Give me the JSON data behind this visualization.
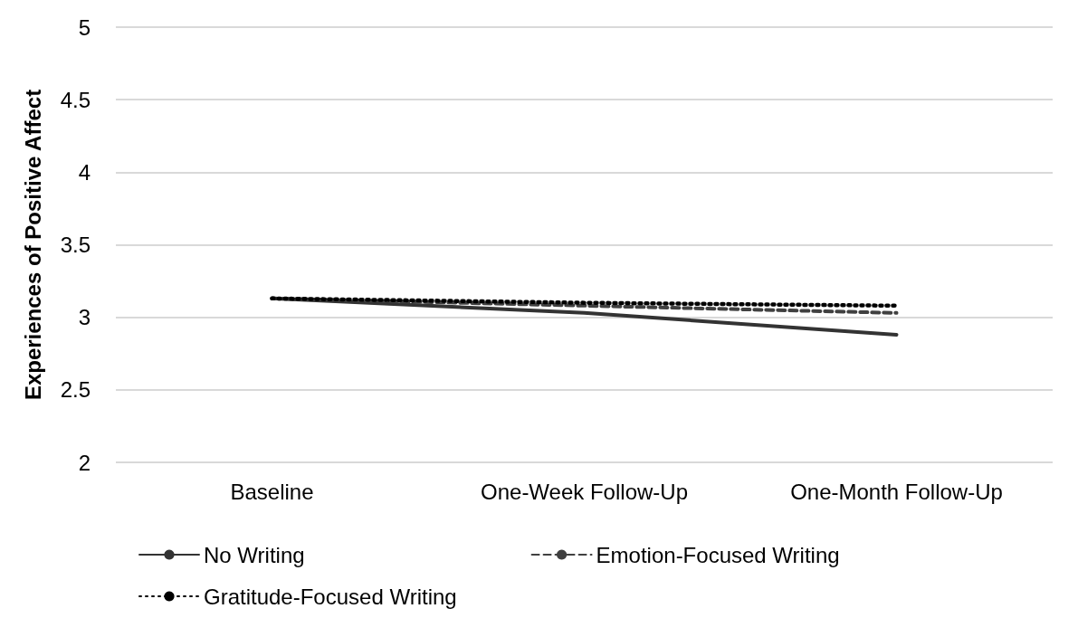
{
  "chart_data": {
    "type": "line",
    "ylabel": "Experiences of Positive Affect",
    "categories": [
      "Baseline",
      "One-Week Follow-Up",
      "One-Month Follow-Up"
    ],
    "series": [
      {
        "name": "No Writing",
        "color": "#333333",
        "line_style": "solid",
        "values": [
          3.13,
          3.03,
          2.88
        ]
      },
      {
        "name": "Emotion-Focused Writing",
        "color": "#404040",
        "line_style": "dashed",
        "values": [
          3.13,
          3.08,
          3.03
        ]
      },
      {
        "name": "Gratitude-Focused Writing",
        "color": "#000000",
        "line_style": "dotted",
        "values": [
          3.13,
          3.1,
          3.08
        ]
      }
    ],
    "ylim": [
      2,
      5
    ],
    "yticks": [
      2,
      2.5,
      3,
      3.5,
      4,
      4.5,
      5
    ],
    "grid": "y",
    "legend": "bottom",
    "marker": "none"
  }
}
